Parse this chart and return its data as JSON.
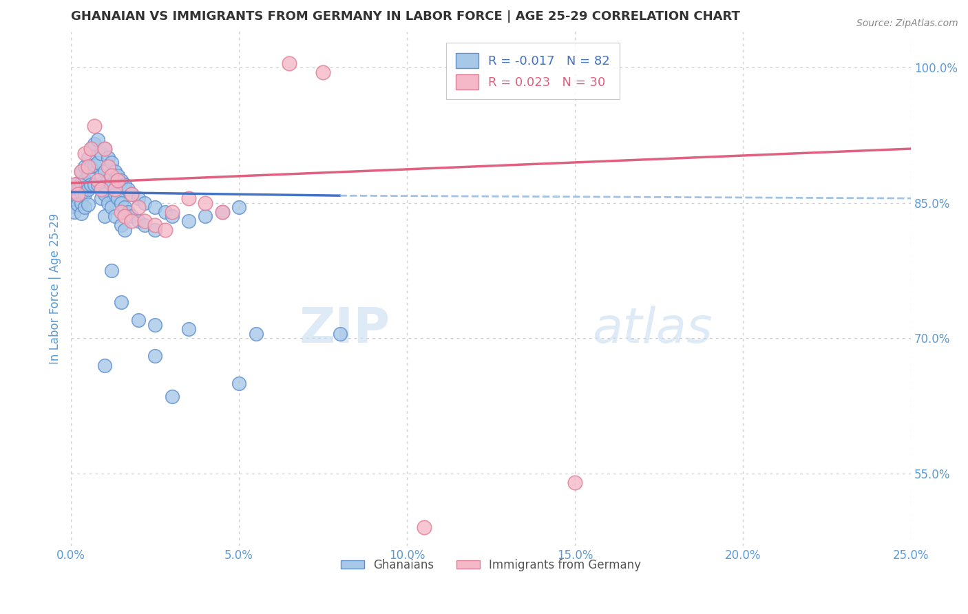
{
  "title": "GHANAIAN VS IMMIGRANTS FROM GERMANY IN LABOR FORCE | AGE 25-29 CORRELATION CHART",
  "source": "Source: ZipAtlas.com",
  "ylabel": "In Labor Force | Age 25-29",
  "x_tick_labels": [
    "0.0%",
    "5.0%",
    "10.0%",
    "15.0%",
    "20.0%",
    "25.0%"
  ],
  "x_tick_values": [
    0.0,
    5.0,
    10.0,
    15.0,
    20.0,
    25.0
  ],
  "y_tick_labels": [
    "55.0%",
    "70.0%",
    "85.0%",
    "100.0%"
  ],
  "y_tick_values": [
    55.0,
    70.0,
    85.0,
    100.0
  ],
  "xlim": [
    0.0,
    25.0
  ],
  "ylim": [
    47.0,
    104.0
  ],
  "blue_R": "-0.017",
  "blue_N": "82",
  "pink_R": "0.023",
  "pink_N": "30",
  "blue_color": "#a8c8e8",
  "pink_color": "#f4b8c8",
  "blue_edge_color": "#6090d0",
  "pink_edge_color": "#e08098",
  "blue_line_color": "#4472c4",
  "pink_line_color": "#e06080",
  "blue_dash_color": "#90b8e0",
  "blue_scatter": [
    [
      0.1,
      86.5
    ],
    [
      0.1,
      85.8
    ],
    [
      0.1,
      85.2
    ],
    [
      0.1,
      84.6
    ],
    [
      0.1,
      84.0
    ],
    [
      0.2,
      87.2
    ],
    [
      0.2,
      86.4
    ],
    [
      0.2,
      85.5
    ],
    [
      0.2,
      84.8
    ],
    [
      0.3,
      88.5
    ],
    [
      0.3,
      87.2
    ],
    [
      0.3,
      86.1
    ],
    [
      0.3,
      85.0
    ],
    [
      0.3,
      83.8
    ],
    [
      0.4,
      89.0
    ],
    [
      0.4,
      87.5
    ],
    [
      0.4,
      86.0
    ],
    [
      0.4,
      84.5
    ],
    [
      0.5,
      90.0
    ],
    [
      0.5,
      88.2
    ],
    [
      0.5,
      86.5
    ],
    [
      0.5,
      84.8
    ],
    [
      0.6,
      91.0
    ],
    [
      0.6,
      89.0
    ],
    [
      0.6,
      87.0
    ],
    [
      0.7,
      91.5
    ],
    [
      0.7,
      89.2
    ],
    [
      0.7,
      87.0
    ],
    [
      0.8,
      92.0
    ],
    [
      0.8,
      89.5
    ],
    [
      0.8,
      87.0
    ],
    [
      0.9,
      90.5
    ],
    [
      0.9,
      88.0
    ],
    [
      0.9,
      85.5
    ],
    [
      1.0,
      91.0
    ],
    [
      1.0,
      88.5
    ],
    [
      1.0,
      86.0
    ],
    [
      1.0,
      83.5
    ],
    [
      1.1,
      90.0
    ],
    [
      1.1,
      87.5
    ],
    [
      1.1,
      85.0
    ],
    [
      1.2,
      89.5
    ],
    [
      1.2,
      87.0
    ],
    [
      1.2,
      84.5
    ],
    [
      1.3,
      88.5
    ],
    [
      1.3,
      86.0
    ],
    [
      1.3,
      83.5
    ],
    [
      1.4,
      88.0
    ],
    [
      1.4,
      85.5
    ],
    [
      1.5,
      87.5
    ],
    [
      1.5,
      85.0
    ],
    [
      1.5,
      82.5
    ],
    [
      1.6,
      87.0
    ],
    [
      1.6,
      84.5
    ],
    [
      1.6,
      82.0
    ],
    [
      1.7,
      86.5
    ],
    [
      1.7,
      84.0
    ],
    [
      1.8,
      86.0
    ],
    [
      1.8,
      83.5
    ],
    [
      2.0,
      85.5
    ],
    [
      2.0,
      83.0
    ],
    [
      2.2,
      85.0
    ],
    [
      2.2,
      82.5
    ],
    [
      2.5,
      84.5
    ],
    [
      2.5,
      82.0
    ],
    [
      2.8,
      84.0
    ],
    [
      3.0,
      83.5
    ],
    [
      3.5,
      83.0
    ],
    [
      4.0,
      83.5
    ],
    [
      4.5,
      84.0
    ],
    [
      5.0,
      84.5
    ],
    [
      1.2,
      77.5
    ],
    [
      1.5,
      74.0
    ],
    [
      2.0,
      72.0
    ],
    [
      2.5,
      71.5
    ],
    [
      3.5,
      71.0
    ],
    [
      1.0,
      67.0
    ],
    [
      2.5,
      68.0
    ],
    [
      5.5,
      70.5
    ],
    [
      8.0,
      70.5
    ],
    [
      3.0,
      63.5
    ],
    [
      5.0,
      65.0
    ]
  ],
  "pink_scatter": [
    [
      0.1,
      87.0
    ],
    [
      0.2,
      86.0
    ],
    [
      0.3,
      88.5
    ],
    [
      0.4,
      90.5
    ],
    [
      0.5,
      89.0
    ],
    [
      0.6,
      91.0
    ],
    [
      0.7,
      93.5
    ],
    [
      0.8,
      87.5
    ],
    [
      0.9,
      86.5
    ],
    [
      1.0,
      91.0
    ],
    [
      1.1,
      89.0
    ],
    [
      1.2,
      88.0
    ],
    [
      1.3,
      86.5
    ],
    [
      1.4,
      87.5
    ],
    [
      1.5,
      84.0
    ],
    [
      1.6,
      83.5
    ],
    [
      1.8,
      83.0
    ],
    [
      2.0,
      84.5
    ],
    [
      2.2,
      83.0
    ],
    [
      2.5,
      82.5
    ],
    [
      2.8,
      82.0
    ],
    [
      3.0,
      84.0
    ],
    [
      3.5,
      85.5
    ],
    [
      4.0,
      85.0
    ],
    [
      4.5,
      84.0
    ],
    [
      6.5,
      100.5
    ],
    [
      7.5,
      99.5
    ],
    [
      15.0,
      54.0
    ],
    [
      10.5,
      49.0
    ],
    [
      1.8,
      86.0
    ]
  ],
  "watermark_text": "ZIPatlas",
  "blue_trend_x1": 0.0,
  "blue_trend_y1": 86.2,
  "blue_trend_x2": 8.0,
  "blue_trend_y2": 85.8,
  "blue_dash_x1": 8.0,
  "blue_dash_y1": 85.8,
  "blue_dash_x2": 25.0,
  "blue_dash_y2": 85.5,
  "pink_trend_x1": 0.0,
  "pink_trend_y1": 87.2,
  "pink_trend_x2": 25.0,
  "pink_trend_y2": 91.0,
  "background_color": "#ffffff",
  "grid_color": "#cccccc",
  "title_color": "#333333",
  "axis_label_color": "#5b9bd5",
  "tick_color": "#5b9bd5"
}
